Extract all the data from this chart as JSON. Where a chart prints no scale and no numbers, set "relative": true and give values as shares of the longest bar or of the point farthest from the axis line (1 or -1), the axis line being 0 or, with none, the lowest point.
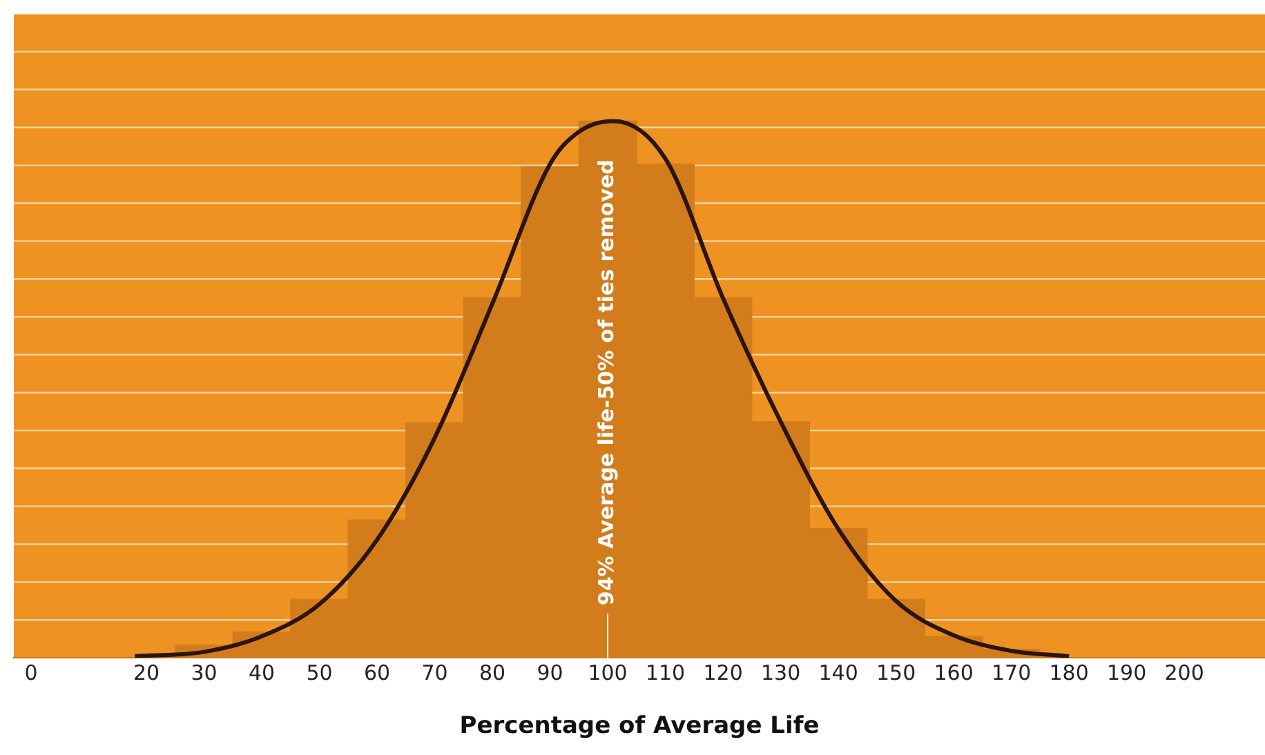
{
  "chart_data": {
    "type": "histogram",
    "relative": true,
    "xlabel": "Percentage of Average Life",
    "bins": [
      25,
      35,
      45,
      55,
      65,
      75,
      85,
      95,
      105,
      115,
      125,
      135,
      145,
      155,
      165,
      175
    ],
    "values": [
      0.024,
      0.048,
      0.109,
      0.257,
      0.438,
      0.671,
      0.915,
      1,
      0.92,
      0.671,
      0.44,
      0.241,
      0.109,
      0.04,
      0.016
    ],
    "color": "#d27c1c",
    "series": [
      {
        "type": "line",
        "color": "#2b1409",
        "x": [
          18,
          30,
          40,
          50,
          60,
          70,
          80,
          90,
          95,
          101,
          110,
          120,
          130,
          140,
          150,
          160,
          170,
          180
        ],
        "values": [
          0.003,
          0.011,
          0.04,
          0.1,
          0.22,
          0.41,
          0.66,
          0.92,
          0.98,
          1,
          0.93,
          0.67,
          0.44,
          0.24,
          0.106,
          0.042,
          0.013,
          0.003
        ]
      }
    ],
    "xlim": [
      -3,
      214
    ],
    "xticks": [
      0,
      20,
      30,
      40,
      50,
      60,
      70,
      80,
      90,
      100,
      110,
      120,
      130,
      140,
      150,
      160,
      170,
      180,
      190,
      200
    ],
    "grid": "y",
    "legend": false,
    "marker": "none",
    "line_style": "solid",
    "ref_lines": [
      {
        "axis": "x",
        "value": 100,
        "label": "94% Average life-50% of ties removed",
        "color": "#ffffff"
      }
    ]
  }
}
